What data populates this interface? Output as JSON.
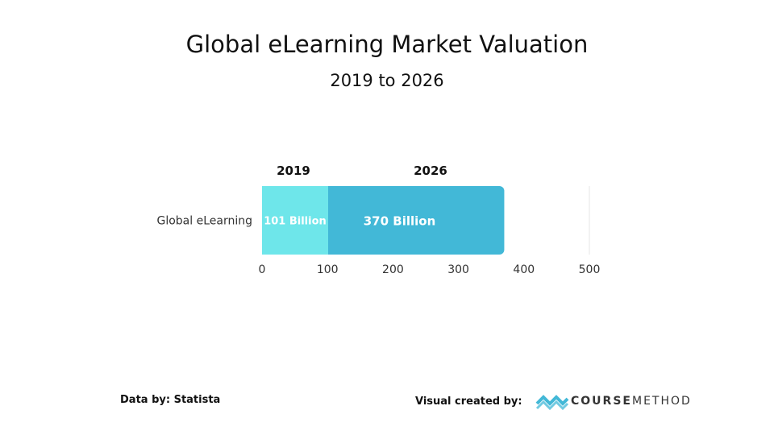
{
  "chart_data": {
    "type": "bar",
    "orientation": "horizontal",
    "stacked": true,
    "title": "Global eLearning Market Valuation",
    "subtitle": "2019 to 2026",
    "categories": [
      "Global eLearning"
    ],
    "series": [
      {
        "name": "2019",
        "values": [
          101
        ],
        "color": "#6ee6ea",
        "label": "101 Billion"
      },
      {
        "name": "2026",
        "values": [
          370
        ],
        "color": "#42b8d7",
        "label": "370 Billion"
      }
    ],
    "xlim": [
      0,
      500
    ],
    "xticks": [
      "0",
      "100",
      "200",
      "300",
      "400",
      "500"
    ],
    "legend": "top"
  },
  "footer": {
    "source": "Data by: Statista",
    "credit": "Visual created by:",
    "logo_text_bold": "COURSE",
    "logo_text_light": "METHOD",
    "logo_color": "#42b8d7"
  }
}
